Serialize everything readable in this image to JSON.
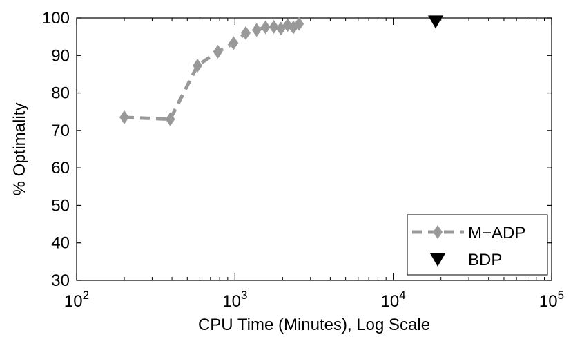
{
  "chart_data": {
    "type": "scatter",
    "xlabel": "CPU Time (Minutes), Log Scale",
    "ylabel": "% Optimality",
    "xscale": "log",
    "xlim": [
      100,
      100000
    ],
    "ylim": [
      30,
      100
    ],
    "x_ticks": [
      {
        "base": "10",
        "exp": "2",
        "value": 100
      },
      {
        "base": "10",
        "exp": "3",
        "value": 1000
      },
      {
        "base": "10",
        "exp": "4",
        "value": 10000
      },
      {
        "base": "10",
        "exp": "5",
        "value": 100000
      }
    ],
    "y_ticks": [
      "30",
      "40",
      "50",
      "60",
      "70",
      "80",
      "90",
      "100"
    ],
    "grid": false,
    "legend_position": "bottom-right",
    "series": [
      {
        "name": "M−ADP",
        "style": "dashed line with diamond markers",
        "color": "#999999",
        "points": [
          {
            "x": 200,
            "y": 73.5
          },
          {
            "x": 390,
            "y": 73
          },
          {
            "x": 580,
            "y": 87.3
          },
          {
            "x": 780,
            "y": 91
          },
          {
            "x": 980,
            "y": 93.3
          },
          {
            "x": 1170,
            "y": 96
          },
          {
            "x": 1370,
            "y": 96.8
          },
          {
            "x": 1560,
            "y": 97.5
          },
          {
            "x": 1760,
            "y": 97.6
          },
          {
            "x": 1950,
            "y": 97.2
          },
          {
            "x": 2150,
            "y": 98.1
          },
          {
            "x": 2340,
            "y": 97.5
          },
          {
            "x": 2540,
            "y": 98.4
          }
        ]
      },
      {
        "name": "BDP",
        "style": "downward triangle marker",
        "color": "#000000",
        "points": [
          {
            "x": 18500,
            "y": 99
          }
        ]
      }
    ]
  }
}
